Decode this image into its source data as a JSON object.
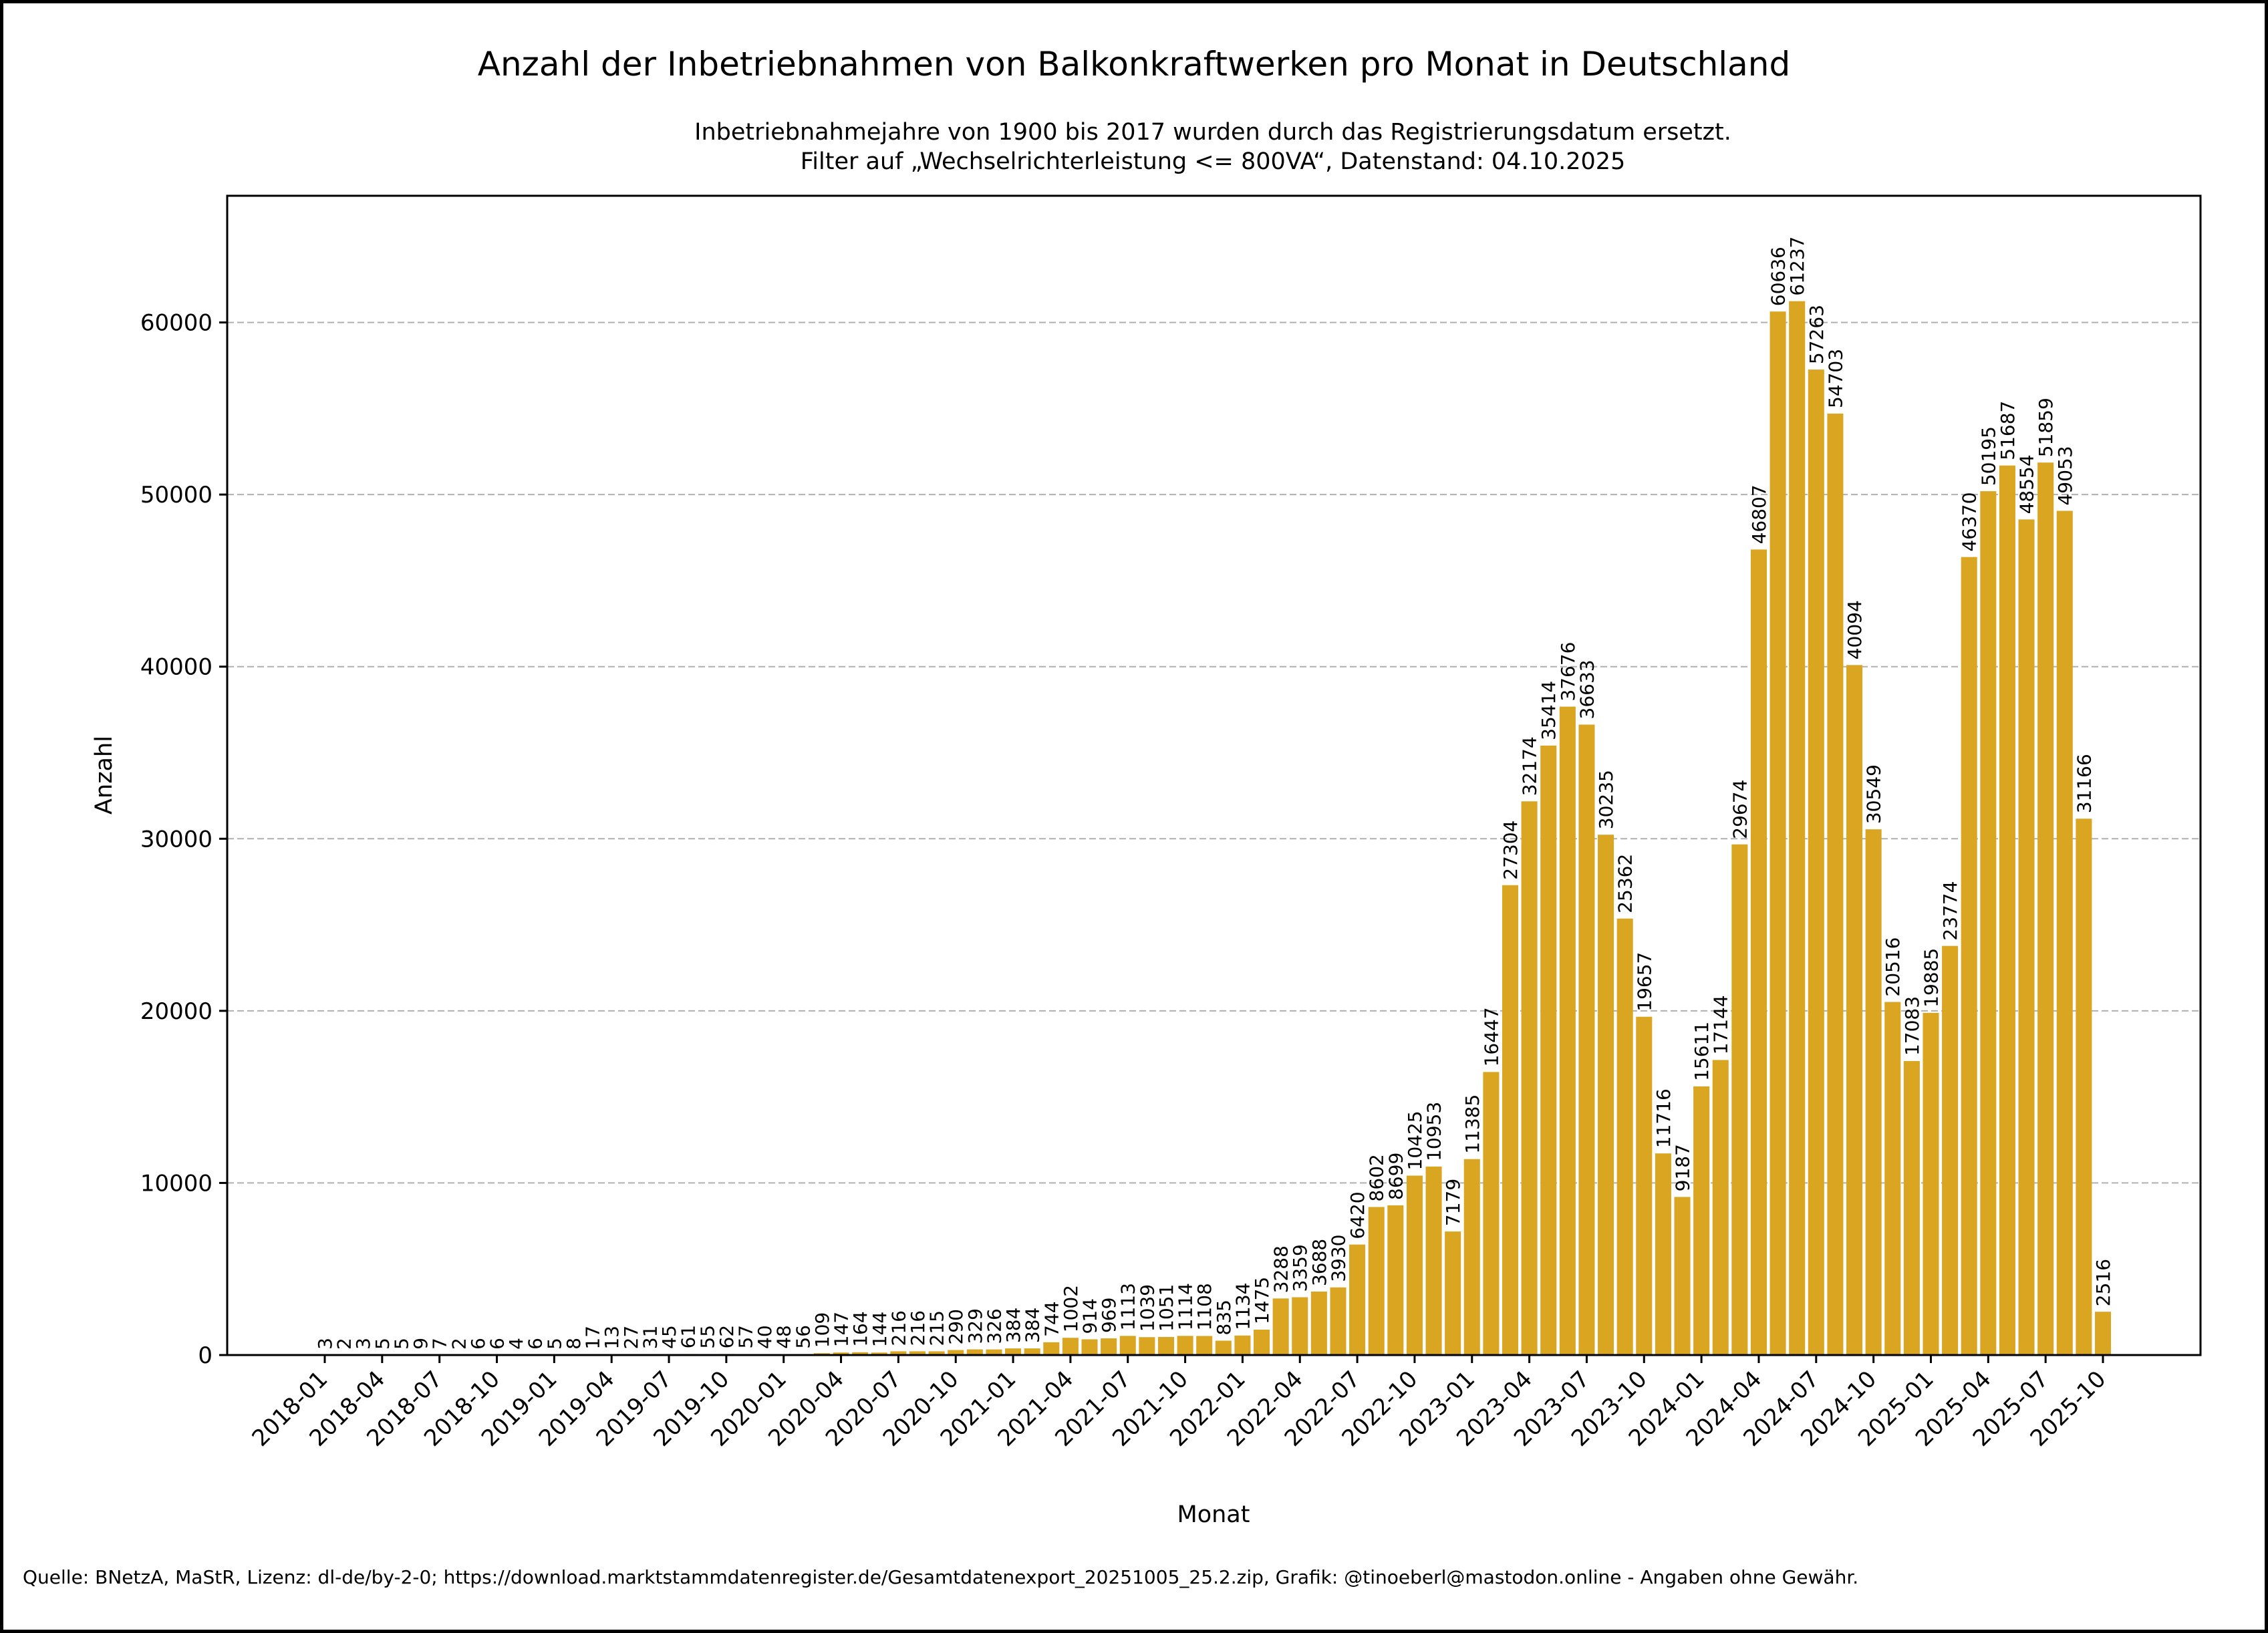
{
  "chart_data": {
    "type": "bar",
    "title": "Anzahl der Inbetriebnahmen von Balkonkraftwerken pro Monat in Deutschland",
    "subtitle_lines": [
      "Inbetriebnahmejahre von 1900 bis 2017 wurden durch das Registrierungsdatum ersetzt.",
      "Filter auf „Wechselrichterleistung <= 800VA“, Datenstand: 04.10.2025"
    ],
    "xlabel": "Monat",
    "ylabel": "Anzahl",
    "ylim": [
      0,
      67361
    ],
    "yticks": [
      0,
      10000,
      20000,
      30000,
      40000,
      50000,
      60000
    ],
    "grid": "y, dashed",
    "legend": "none",
    "bar_color": "#DAA520",
    "xtick_labels": [
      "2018-01",
      "2018-04",
      "2018-07",
      "2018-10",
      "2019-01",
      "2019-04",
      "2019-07",
      "2019-10",
      "2020-01",
      "2020-04",
      "2020-07",
      "2020-10",
      "2021-01",
      "2021-04",
      "2021-07",
      "2021-10",
      "2022-01",
      "2022-04",
      "2022-07",
      "2022-10",
      "2023-01",
      "2023-04",
      "2023-07",
      "2023-10",
      "2024-01",
      "2024-04",
      "2024-07",
      "2024-10",
      "2025-01",
      "2025-04",
      "2025-07",
      "2025-10"
    ],
    "categories": [
      "2018-01",
      "2018-02",
      "2018-03",
      "2018-04",
      "2018-05",
      "2018-06",
      "2018-07",
      "2018-08",
      "2018-09",
      "2018-10",
      "2018-11",
      "2018-12",
      "2019-01",
      "2019-02",
      "2019-03",
      "2019-04",
      "2019-05",
      "2019-06",
      "2019-07",
      "2019-08",
      "2019-09",
      "2019-10",
      "2019-11",
      "2019-12",
      "2020-01",
      "2020-02",
      "2020-03",
      "2020-04",
      "2020-05",
      "2020-06",
      "2020-07",
      "2020-08",
      "2020-09",
      "2020-10",
      "2020-11",
      "2020-12",
      "2021-01",
      "2021-02",
      "2021-03",
      "2021-04",
      "2021-05",
      "2021-06",
      "2021-07",
      "2021-08",
      "2021-09",
      "2021-10",
      "2021-11",
      "2021-12",
      "2022-01",
      "2022-02",
      "2022-03",
      "2022-04",
      "2022-05",
      "2022-06",
      "2022-07",
      "2022-08",
      "2022-09",
      "2022-10",
      "2022-11",
      "2022-12",
      "2023-01",
      "2023-02",
      "2023-03",
      "2023-04",
      "2023-05",
      "2023-06",
      "2023-07",
      "2023-08",
      "2023-09",
      "2023-10",
      "2023-11",
      "2023-12",
      "2024-01",
      "2024-02",
      "2024-03",
      "2024-04",
      "2024-05",
      "2024-06",
      "2024-07",
      "2024-08",
      "2024-09",
      "2024-10",
      "2024-11",
      "2024-12",
      "2025-01",
      "2025-02",
      "2025-03",
      "2025-04",
      "2025-05",
      "2025-06",
      "2025-07",
      "2025-08",
      "2025-09",
      "2025-10"
    ],
    "values": [
      3,
      2,
      3,
      5,
      5,
      9,
      7,
      2,
      6,
      6,
      4,
      6,
      5,
      8,
      17,
      13,
      27,
      31,
      45,
      61,
      55,
      62,
      57,
      40,
      48,
      56,
      109,
      147,
      164,
      144,
      216,
      216,
      215,
      290,
      329,
      326,
      384,
      384,
      744,
      1002,
      914,
      969,
      1113,
      1039,
      1051,
      1114,
      1108,
      835,
      1134,
      1475,
      3288,
      3359,
      3688,
      3930,
      6420,
      8602,
      8699,
      10425,
      10953,
      7179,
      11385,
      16447,
      27304,
      32174,
      35414,
      37676,
      36633,
      30235,
      25362,
      19657,
      11716,
      9187,
      15611,
      17144,
      29674,
      46807,
      60636,
      61237,
      57263,
      54703,
      40094,
      30549,
      20516,
      17083,
      19885,
      23774,
      46370,
      50195,
      51687,
      48554,
      51859,
      49053,
      31166,
      2516
    ]
  },
  "footer": "Quelle: BNetzA, MaStR, Lizenz: dl-de/by-2-0; https://download.marktstammdatenregister.de/Gesamtdatenexport_20251005_25.2.zip, Grafik: @tinoeberl@mastodon.online - Angaben ohne Gewähr."
}
